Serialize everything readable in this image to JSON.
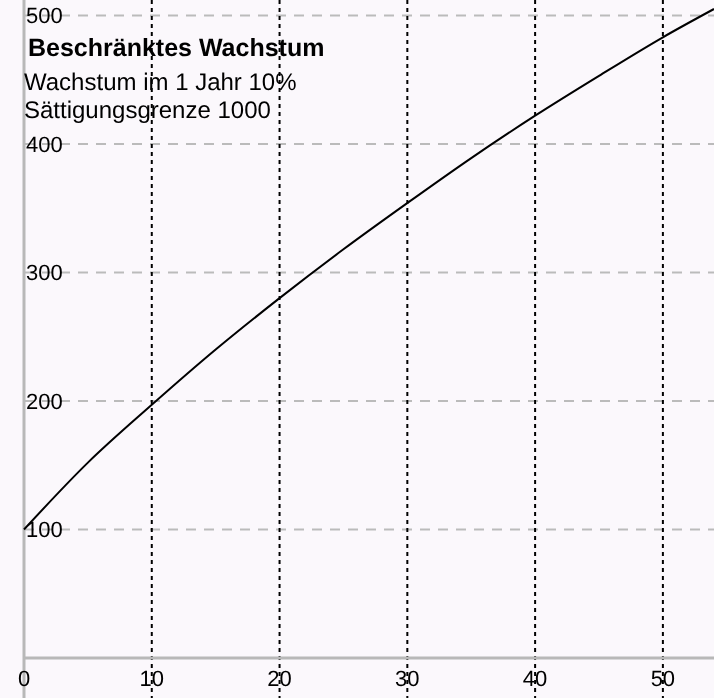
{
  "chart_data": {
    "type": "line",
    "title": "Beschränktes Wachstum",
    "subtitle": "Wachstum im 1 Jahr 10%",
    "annotations": [
      "Sättigungsgrenze 1000"
    ],
    "x": [
      0,
      5,
      10,
      15,
      20,
      25,
      30,
      35,
      40,
      45,
      50,
      54
    ],
    "series": [
      {
        "color": "#000000",
        "values": [
          100,
          152,
          197,
          240,
          280,
          318,
          354,
          389,
          422,
          453,
          483,
          505
        ]
      }
    ],
    "xlim": [
      0,
      54
    ],
    "ylim": [
      0,
      512
    ],
    "xticks": [
      0,
      10,
      20,
      30,
      40,
      50
    ],
    "yticks": [
      {
        "value": 0,
        "label": null
      },
      100,
      200,
      300,
      400,
      500
    ],
    "grid": true,
    "marker": "none",
    "line_style": "solid"
  }
}
